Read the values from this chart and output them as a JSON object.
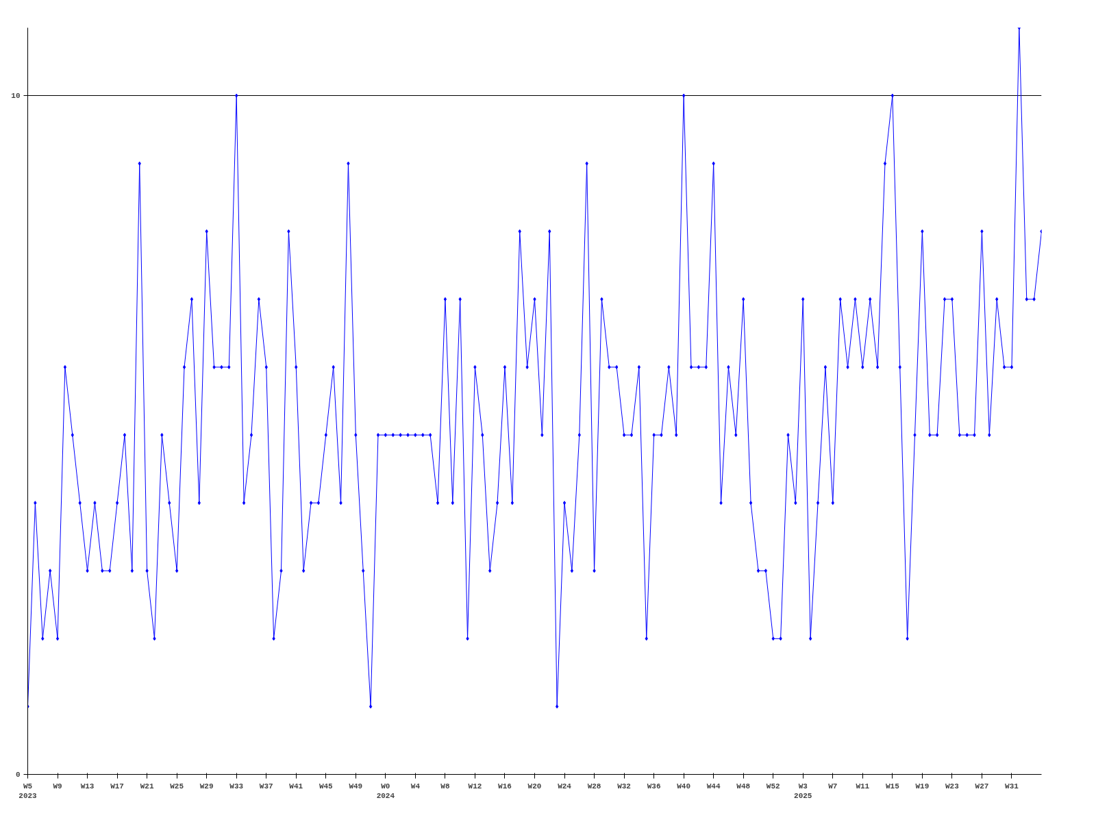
{
  "chart_data": {
    "type": "line",
    "categories": [
      "W5\n2023",
      null,
      null,
      null,
      "W9",
      null,
      null,
      null,
      "W13",
      null,
      null,
      null,
      "W17",
      null,
      null,
      null,
      "W21",
      null,
      null,
      null,
      "W25",
      null,
      null,
      null,
      "W29",
      null,
      null,
      null,
      "W33",
      null,
      null,
      null,
      "W37",
      null,
      null,
      null,
      "W41",
      null,
      null,
      null,
      "W45",
      null,
      null,
      null,
      "W49",
      null,
      null,
      null,
      "W0\n2024",
      null,
      null,
      null,
      "W4",
      null,
      null,
      null,
      "W8",
      null,
      null,
      null,
      "W12",
      null,
      null,
      null,
      "W16",
      null,
      null,
      null,
      "W20",
      null,
      null,
      null,
      "W24",
      null,
      null,
      null,
      "W28",
      null,
      null,
      null,
      "W32",
      null,
      null,
      null,
      "W36",
      null,
      null,
      null,
      "W40",
      null,
      null,
      null,
      "W44",
      null,
      null,
      null,
      "W48",
      null,
      null,
      null,
      "W52",
      null,
      null,
      null,
      "W3\n2025",
      null,
      null,
      null,
      "W7",
      null,
      null,
      null,
      "W11",
      null,
      null,
      null,
      "W15",
      null,
      null,
      null,
      "W19",
      null,
      null,
      null,
      "W23",
      null,
      null,
      null,
      "W27",
      null,
      null,
      null,
      "W31",
      null,
      null,
      null,
      null
    ],
    "series": [
      {
        "color": "#0000ff",
        "values": [
          1,
          4,
          2,
          3,
          2,
          6,
          5,
          4,
          3,
          4,
          3,
          3,
          4,
          5,
          3,
          9,
          3,
          2,
          5,
          4,
          3,
          6,
          7,
          4,
          8,
          6,
          6,
          6,
          10,
          4,
          5,
          7,
          6,
          2,
          3,
          8,
          6,
          3,
          4,
          4,
          5,
          6,
          4,
          9,
          5,
          3,
          1,
          5,
          5,
          5,
          5,
          5,
          5,
          5,
          5,
          4,
          7,
          4,
          7,
          2,
          6,
          5,
          3,
          4,
          6,
          4,
          8,
          6,
          7,
          5,
          8,
          1,
          4,
          3,
          5,
          9,
          3,
          7,
          6,
          6,
          5,
          5,
          6,
          2,
          5,
          5,
          6,
          5,
          10,
          6,
          6,
          6,
          9,
          4,
          6,
          5,
          7,
          4,
          3,
          3,
          2,
          2,
          5,
          4,
          7,
          2,
          4,
          6,
          4,
          7,
          6,
          7,
          6,
          7,
          6,
          9,
          10,
          6,
          2,
          5,
          8,
          5,
          5,
          7,
          7,
          5,
          5,
          5,
          8,
          5,
          7,
          6,
          6,
          11,
          7,
          7,
          8
        ]
      }
    ],
    "ylim": [
      0,
      11
    ],
    "yticks": [
      0,
      10
    ],
    "grid": "y",
    "marker": "diamond",
    "line_style": "solid"
  }
}
